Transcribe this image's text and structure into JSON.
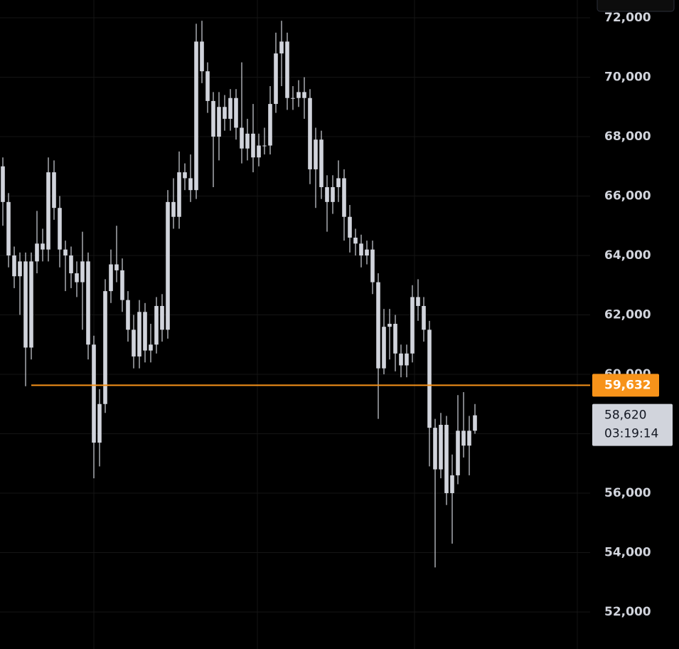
{
  "chart_data": {
    "type": "candlestick",
    "color": "#d1d4dc",
    "ylim": [
      50754,
      72599
    ],
    "yticks": [
      {
        "value": 52000,
        "label": "52,000"
      },
      {
        "value": 54000,
        "label": "54,000"
      },
      {
        "value": 56000,
        "label": "56,000"
      },
      {
        "value": 58000,
        "label": "58,000"
      },
      {
        "value": 60000,
        "label": "60,000"
      },
      {
        "value": 62000,
        "label": "62,000"
      },
      {
        "value": 64000,
        "label": "64,000"
      },
      {
        "value": 66000,
        "label": "66,000"
      },
      {
        "value": 68000,
        "label": "68,000"
      },
      {
        "value": 70000,
        "label": "70,000"
      },
      {
        "value": 72000,
        "label": "72,000"
      }
    ],
    "grid": true,
    "open": [
      67000,
      65800,
      64000,
      63300,
      63800,
      60900,
      63800,
      64400,
      64200,
      66800,
      65600,
      64200,
      64000,
      63400,
      63100,
      63800,
      61000,
      57700,
      59000,
      62800,
      63700,
      63500,
      62500,
      61500,
      60600,
      62100,
      60800,
      61000,
      62300,
      61500,
      65800,
      65300,
      66800,
      66600,
      66200,
      71200,
      70200,
      69200,
      68000,
      69000,
      68600,
      69300,
      68300,
      67600,
      68100,
      67300,
      67700,
      67700,
      69100,
      70800,
      71200,
      69300,
      69300,
      69500,
      69300,
      66900,
      67900,
      66300,
      65800,
      66300,
      66600,
      65300,
      64600,
      64400,
      64000,
      64200,
      63100,
      60200,
      61600,
      61700,
      60700,
      60300,
      60700,
      62600,
      62300,
      61500,
      58200,
      56800,
      58300,
      56000,
      56600,
      58100,
      57600,
      58100
    ],
    "high": [
      67300,
      66100,
      64300,
      64100,
      64100,
      64100,
      65500,
      64900,
      67300,
      67200,
      66000,
      64500,
      64300,
      63800,
      64800,
      64100,
      61300,
      59500,
      63200,
      64200,
      65000,
      63900,
      62800,
      62000,
      62500,
      62400,
      61700,
      62600,
      62700,
      66200,
      66600,
      67500,
      67100,
      67400,
      71800,
      71900,
      70500,
      69500,
      69500,
      69400,
      69600,
      69600,
      70500,
      68600,
      69100,
      68100,
      68300,
      69700,
      71500,
      71900,
      71500,
      69700,
      69900,
      70000,
      69600,
      68300,
      68200,
      66700,
      66700,
      67200,
      66900,
      65700,
      64900,
      64700,
      64500,
      64500,
      63400,
      62200,
      62200,
      62000,
      61000,
      61000,
      63000,
      63200,
      62600,
      61800,
      58500,
      58700,
      58600,
      57300,
      59300,
      59400,
      58600,
      59000
    ],
    "low": [
      65000,
      63600,
      62900,
      62000,
      59600,
      60500,
      63400,
      63800,
      63800,
      65200,
      63600,
      62800,
      62900,
      62600,
      61500,
      60500,
      56500,
      56900,
      58700,
      62400,
      63100,
      62100,
      61100,
      60200,
      60200,
      60400,
      60400,
      60700,
      61100,
      61200,
      64900,
      64900,
      66200,
      65800,
      65900,
      69800,
      68800,
      66300,
      67200,
      68200,
      68200,
      67900,
      67100,
      67200,
      66800,
      67000,
      67400,
      67400,
      68800,
      69700,
      68900,
      68900,
      69000,
      68600,
      66400,
      65600,
      65900,
      64800,
      65400,
      65800,
      64500,
      64100,
      64000,
      63600,
      63700,
      62700,
      58500,
      60000,
      60500,
      60100,
      59900,
      59900,
      60400,
      61800,
      61100,
      56900,
      53500,
      56500,
      55600,
      54300,
      56300,
      57200,
      56600,
      58000
    ],
    "close": [
      65800,
      64000,
      63300,
      63800,
      60900,
      63800,
      64400,
      64200,
      66800,
      65600,
      64200,
      64000,
      63400,
      63100,
      63800,
      61000,
      57700,
      59000,
      62800,
      63700,
      63500,
      62500,
      61500,
      60600,
      62100,
      60800,
      61000,
      62300,
      61500,
      65800,
      65300,
      66800,
      66600,
      66200,
      71200,
      70200,
      69200,
      68000,
      69000,
      68600,
      69300,
      68300,
      67600,
      68100,
      67300,
      67700,
      67700,
      69100,
      70800,
      71200,
      69300,
      69300,
      69500,
      69300,
      66900,
      67900,
      66300,
      65800,
      66300,
      66600,
      65300,
      64600,
      64400,
      64000,
      64200,
      63100,
      60200,
      61600,
      61700,
      60700,
      60300,
      60700,
      62600,
      62300,
      61500,
      58200,
      56800,
      58300,
      56000,
      56600,
      58100,
      57600,
      58100,
      58620
    ],
    "price_line": {
      "value": 59632,
      "label": "59,632",
      "color": "#f7931a"
    },
    "last_price": {
      "value": 58620,
      "label": "58,620",
      "countdown": "03:19:14"
    }
  }
}
